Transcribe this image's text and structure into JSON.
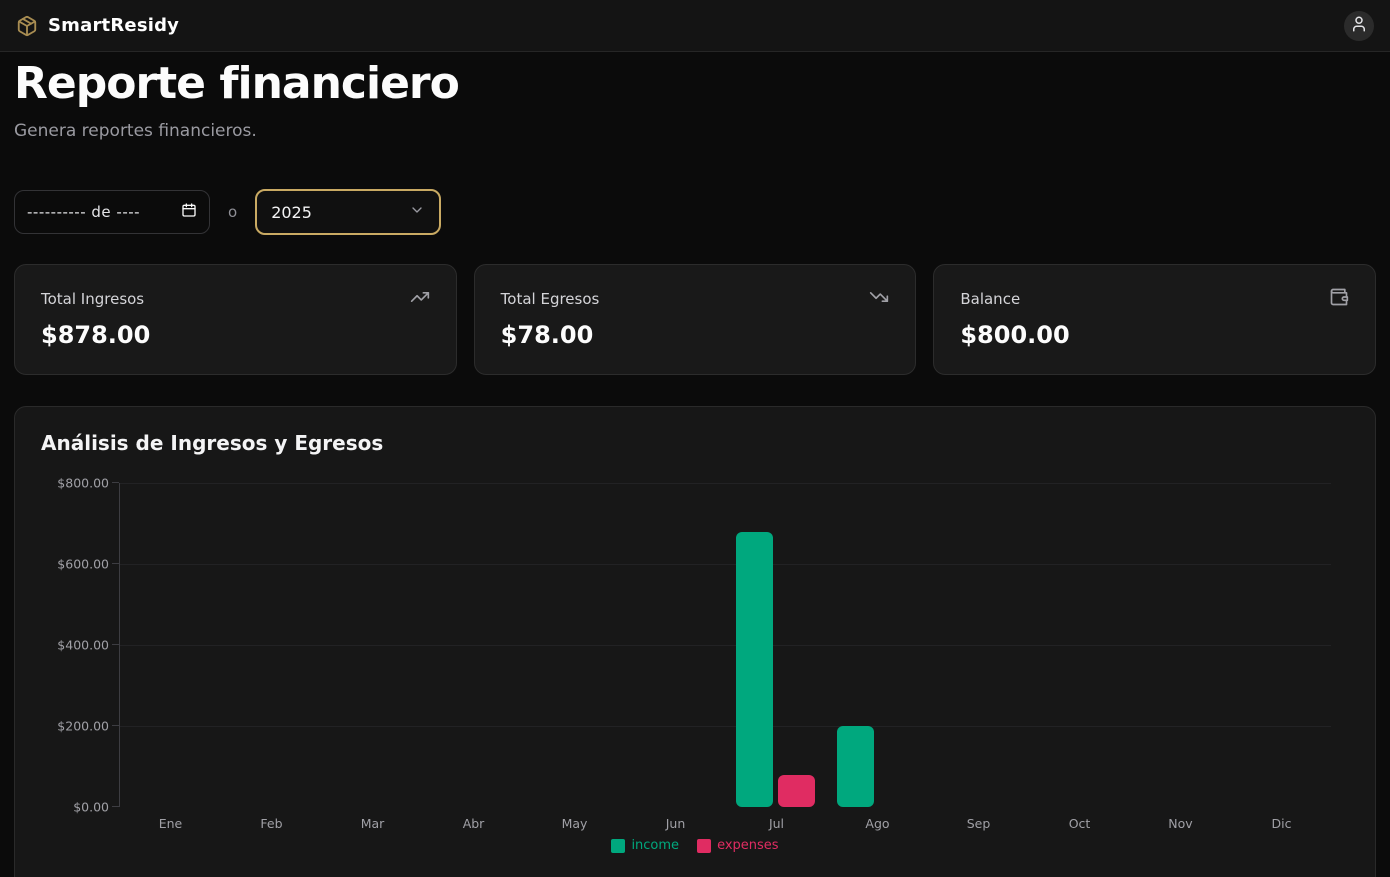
{
  "navbar": {
    "brand": "SmartResidy"
  },
  "user_menu": {
    "icon": "user-icon"
  },
  "header": {
    "title": "Reporte financiero",
    "subtitle": "Genera reportes financieros."
  },
  "filters": {
    "date_value": "---------- de ----",
    "separator": "o",
    "year_value": "2025"
  },
  "stats": [
    {
      "label": "Total Ingresos",
      "value": "$878.00",
      "icon": "trending-up-icon"
    },
    {
      "label": "Total Egresos",
      "value": "$78.00",
      "icon": "trending-down-icon"
    },
    {
      "label": "Balance",
      "value": "$800.00",
      "icon": "wallet-icon"
    }
  ],
  "chart_data": {
    "type": "bar",
    "title": "Análisis de Ingresos y Egresos",
    "categories": [
      "Ene",
      "Feb",
      "Mar",
      "Abr",
      "May",
      "Jun",
      "Jul",
      "Ago",
      "Sep",
      "Oct",
      "Nov",
      "Dic"
    ],
    "series": [
      {
        "name": "income",
        "color": "#00a87e",
        "values": [
          0,
          0,
          0,
          0,
          0,
          0,
          678,
          200,
          0,
          0,
          0,
          0
        ]
      },
      {
        "name": "expenses",
        "color": "#e02c62",
        "values": [
          0,
          0,
          0,
          0,
          0,
          0,
          78,
          0,
          0,
          0,
          0,
          0
        ]
      }
    ],
    "xlabel": "",
    "ylabel": "",
    "ylim": [
      0,
      800
    ],
    "yticks": [
      "$0.00",
      "$200.00",
      "$400.00",
      "$600.00",
      "$800.00"
    ],
    "grid": true,
    "legend": [
      "income",
      "expenses"
    ],
    "legend_position": "bottom"
  },
  "colors": {
    "brand_gold": "#a88d52",
    "select_border": "#c9aa63",
    "income": "#00a87e",
    "expenses": "#e02c62",
    "card_bg": "#191919",
    "page_bg": "#0b0b0b"
  }
}
